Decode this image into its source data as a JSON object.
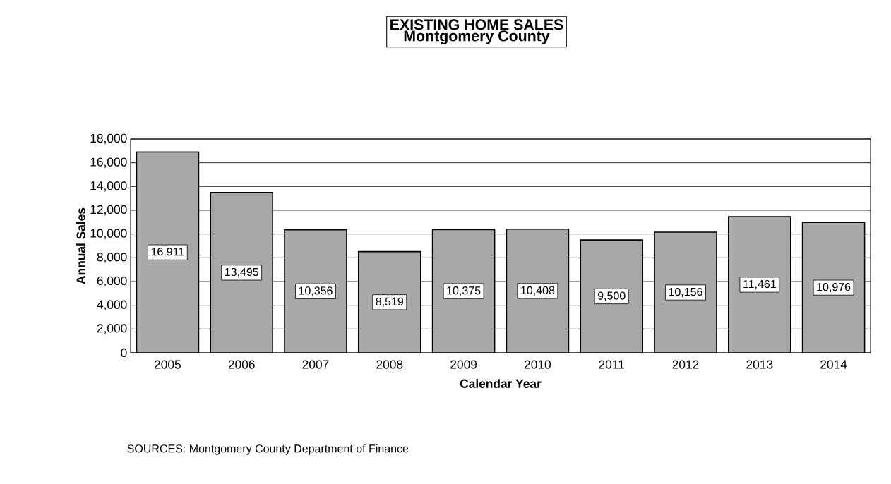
{
  "chart_data": {
    "type": "bar",
    "title": "EXISTING HOME SALES",
    "subtitle": "Montgomery County",
    "xlabel": "Calendar Year",
    "ylabel": "Annual Sales",
    "categories": [
      "2005",
      "2006",
      "2007",
      "2008",
      "2009",
      "2010",
      "2011",
      "2012",
      "2013",
      "2014"
    ],
    "values": [
      16911,
      13495,
      10356,
      8519,
      10375,
      10408,
      9500,
      10156,
      11461,
      10976
    ],
    "value_labels": [
      "16,911",
      "13,495",
      "10,356",
      "8,519",
      "10,375",
      "10,408",
      "9,500",
      "10,156",
      "11,461",
      "10,976"
    ],
    "color": "#a8a8a8",
    "ylim": [
      0,
      18000
    ],
    "yticks": [
      {
        "value": 0,
        "label": "0"
      },
      {
        "value": 2000,
        "label": "2,000"
      },
      {
        "value": 4000,
        "label": "4,000"
      },
      {
        "value": 6000,
        "label": "6,000"
      },
      {
        "value": 8000,
        "label": "8,000"
      },
      {
        "value": 10000,
        "label": "10,000"
      },
      {
        "value": 12000,
        "label": "12,000"
      },
      {
        "value": 14000,
        "label": "14,000"
      },
      {
        "value": 16000,
        "label": "16,000"
      },
      {
        "value": 18000,
        "label": "18,000"
      }
    ],
    "grid": "y",
    "annotations": [
      "SOURCES: Montgomery County Department of Finance"
    ]
  }
}
